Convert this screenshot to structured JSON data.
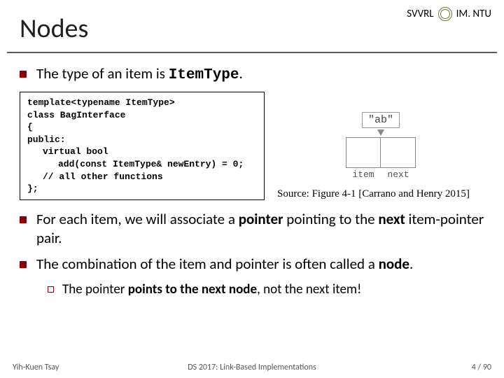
{
  "header": {
    "org_left": "SVVRL",
    "org_right": "IM. NTU",
    "title": "Nodes"
  },
  "bullets": {
    "b1_pre": "The type of an item is ",
    "b1_code": "ItemType",
    "b1_post": ".",
    "b2": "For each item, we will associate a ",
    "b2_bold1": "pointer",
    "b2_mid": " pointing to the ",
    "b2_bold2": "next",
    "b2_end": " item-pointer pair.",
    "b3_pre": "The combination of the item and pointer is often called a ",
    "b3_bold": "node",
    "b3_post": ".",
    "sub1_pre": "The pointer ",
    "sub1_bold": "points to the next node",
    "sub1_post": ", not the next item!"
  },
  "code": {
    "l1": "template<typename ItemType>",
    "l2": "class BagInterface",
    "l3": "{",
    "l4": "public:",
    "l5": "virtual bool",
    "l6": "add(const ItemType& newEntry) = 0;",
    "l7": "// all other functions",
    "l8": "};"
  },
  "figure": {
    "ab": "\"ab\"",
    "item_label": "item",
    "next_label": "next",
    "caption": "Source: Figure 4-1 [Carrano and Henry 2015]"
  },
  "footer": {
    "left": "Yih-Kuen Tsay",
    "center": "DS 2017: Link-Based Implementations",
    "right": "4 / 90"
  },
  "colors": {
    "bullet": "#8b0000",
    "rule": "#5a5a5a"
  }
}
